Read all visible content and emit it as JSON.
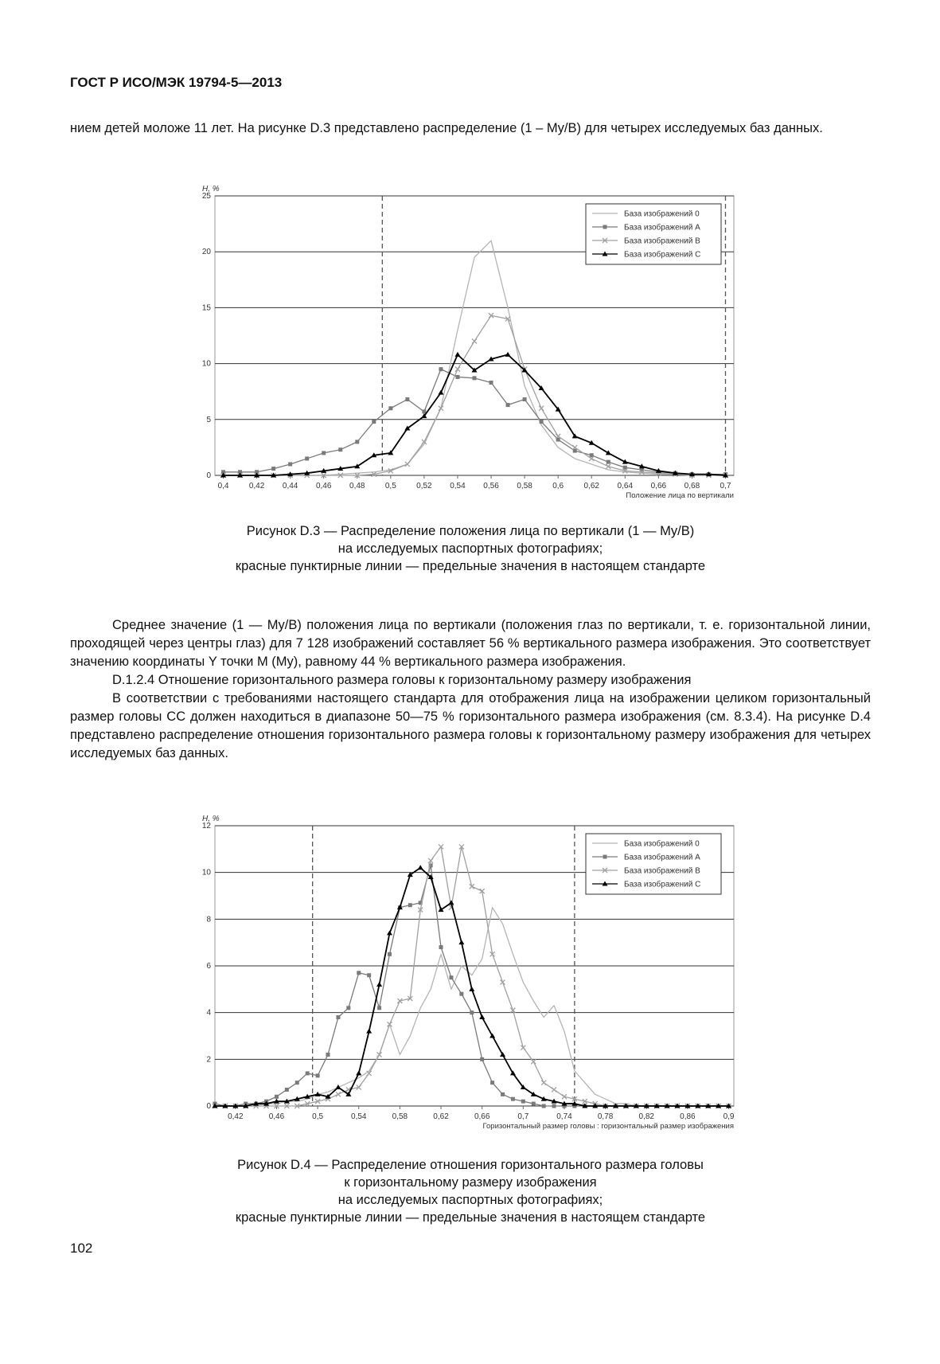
{
  "header": {
    "title": "ГОСТ Р ИСО/МЭК 19794-5—2013"
  },
  "paragraphs": [
    "нием детей моложе 11 лет.  На рисунке D.3 представлено распределение (1 – My/B) для четырех исследуемых баз данных.",
    "Среднее значение (1 — My/B) положения лица по вертикали  (положения глаз по вертикали, т. е. горизонтальной линии, проходящей через центры глаз) для 7 128 изображений составляет 56 % вертикального размера изображения. Это соответствует значению координаты Y точки M (My), равному 44 % вертикального размера изображения.",
    "D.1.2.4 Отношение горизонтального размера головы к горизонтальному размеру изображения",
    "В соответствии с требованиями настоящего стандарта для отображения лица на изображении целиком горизонтальный размер головы CC должен находиться в диапазоне 50—75 % горизонтального размера изображения (см. 8.3.4). На рисунке D.4 представлено распределение отношения горизонтального размера головы к горизонтальному размеру изображения для четырех исследуемых баз данных."
  ],
  "captions": [
    [
      "Рисунок D.3 — Распределение положения лица по вертикали (1 — My/B)",
      "на исследуемых паспортных фотографиях;",
      "красные пунктирные линии — предельные значения в настоящем стандарте"
    ],
    [
      "Рисунок D.4 — Распределение отношения горизонтального размера головы",
      "к горизонтальному размеру изображения",
      "на исследуемых паспортных фотографиях;",
      "красные пунктирные линии — предельные значения в настоящем стандарте"
    ]
  ],
  "page_number": "102",
  "chart_data": [
    {
      "type": "line",
      "y_label": "H, %",
      "x_label": "Положение лица по вертикали",
      "xlim": [
        0.395,
        0.705
      ],
      "ylim": [
        0,
        25
      ],
      "xticks": [
        {
          "value": 0.4,
          "label": "0,4"
        },
        {
          "value": 0.42,
          "label": "0,42"
        },
        {
          "value": 0.44,
          "label": "0,44"
        },
        {
          "value": 0.46,
          "label": "0,46"
        },
        {
          "value": 0.48,
          "label": "0,48"
        },
        {
          "value": 0.5,
          "label": "0,5"
        },
        {
          "value": 0.52,
          "label": "0,52"
        },
        {
          "value": 0.54,
          "label": "0,54"
        },
        {
          "value": 0.56,
          "label": "0,56"
        },
        {
          "value": 0.58,
          "label": "0,58"
        },
        {
          "value": 0.6,
          "label": "0,6"
        },
        {
          "value": 0.62,
          "label": "0,62"
        },
        {
          "value": 0.64,
          "label": "0,64"
        },
        {
          "value": 0.66,
          "label": "0,66"
        },
        {
          "value": 0.68,
          "label": "0,68"
        },
        {
          "value": 0.7,
          "label": "0,7"
        }
      ],
      "yticks": [
        0,
        5,
        10,
        15,
        20,
        25
      ],
      "grid": true,
      "legend": "upper right",
      "limit_lines": [
        0.495,
        0.7
      ],
      "x": [
        0.4,
        0.41,
        0.42,
        0.43,
        0.44,
        0.45,
        0.46,
        0.47,
        0.48,
        0.49,
        0.5,
        0.51,
        0.52,
        0.53,
        0.54,
        0.55,
        0.56,
        0.57,
        0.58,
        0.59,
        0.6,
        0.61,
        0.62,
        0.63,
        0.64,
        0.65,
        0.66,
        0.67,
        0.68,
        0.69,
        0.7
      ],
      "series": [
        {
          "name": "База изображений 0",
          "color": "#b4b4b4",
          "marker": "none",
          "values": [
            0,
            0,
            0,
            0,
            0,
            0,
            0,
            0.1,
            0.2,
            0.3,
            0.5,
            1,
            2.8,
            6,
            13,
            19.5,
            21,
            15,
            8,
            4.5,
            2.5,
            1.5,
            1.0,
            0.5,
            0.3,
            0.2,
            0.1,
            0.1,
            0,
            0,
            0
          ]
        },
        {
          "name": "База изображений A",
          "color": "#7a7a7a",
          "marker": "square",
          "values": [
            0.3,
            0.3,
            0.3,
            0.6,
            1.0,
            1.5,
            2.0,
            2.3,
            3.0,
            4.8,
            6.0,
            6.8,
            5.7,
            9.5,
            8.8,
            8.7,
            8.3,
            6.3,
            6.8,
            4.8,
            3.2,
            2.2,
            1.8,
            1.2,
            0.7,
            0.5,
            0.3,
            0.2,
            0.1,
            0.1,
            0.1
          ]
        },
        {
          "name": "База изображений B",
          "color": "#a0a0a0",
          "marker": "x",
          "values": [
            0,
            0,
            0,
            0,
            0,
            0,
            0,
            0,
            0,
            0.1,
            0.4,
            1.0,
            3.0,
            6.0,
            9.5,
            12,
            14.3,
            14,
            9.5,
            6,
            3.5,
            2.5,
            1.5,
            0.8,
            0.4,
            0.3,
            0.2,
            0.1,
            0,
            0,
            0
          ]
        },
        {
          "name": "База изображений C",
          "color": "#000000",
          "marker": "triangle",
          "values": [
            0,
            0,
            0,
            0,
            0.1,
            0.2,
            0.4,
            0.6,
            0.8,
            1.8,
            2.0,
            4.2,
            5.3,
            7.4,
            10.8,
            9.4,
            10.4,
            10.8,
            9.4,
            7.8,
            5.9,
            3.5,
            2.9,
            2.0,
            1.2,
            0.8,
            0.4,
            0.2,
            0.1,
            0.1,
            0
          ]
        }
      ]
    },
    {
      "type": "line",
      "y_label": "H, %",
      "x_label": "Горизонтальный размер головы : горизонтальный размер изображения",
      "xlim": [
        0.4,
        0.905
      ],
      "ylim": [
        0,
        12
      ],
      "xticks": [
        {
          "value": 0.42,
          "label": "0,42"
        },
        {
          "value": 0.46,
          "label": "0,46"
        },
        {
          "value": 0.5,
          "label": "0,5"
        },
        {
          "value": 0.54,
          "label": "0,54"
        },
        {
          "value": 0.58,
          "label": "0,58"
        },
        {
          "value": 0.62,
          "label": "0,62"
        },
        {
          "value": 0.66,
          "label": "0,66"
        },
        {
          "value": 0.7,
          "label": "0,7"
        },
        {
          "value": 0.74,
          "label": "0,74"
        },
        {
          "value": 0.78,
          "label": "0,78"
        },
        {
          "value": 0.82,
          "label": "0,82"
        },
        {
          "value": 0.86,
          "label": "0,86"
        },
        {
          "value": 0.9,
          "label": "0,9"
        }
      ],
      "yticks": [
        0,
        2,
        4,
        6,
        8,
        10,
        12
      ],
      "grid": true,
      "legend": "upper right",
      "limit_lines": [
        0.495,
        0.75
      ],
      "x": [
        0.4,
        0.41,
        0.42,
        0.43,
        0.44,
        0.45,
        0.46,
        0.47,
        0.48,
        0.49,
        0.5,
        0.51,
        0.52,
        0.53,
        0.54,
        0.55,
        0.56,
        0.57,
        0.58,
        0.59,
        0.6,
        0.61,
        0.62,
        0.63,
        0.64,
        0.65,
        0.66,
        0.67,
        0.68,
        0.69,
        0.7,
        0.71,
        0.72,
        0.73,
        0.74,
        0.75,
        0.76,
        0.77,
        0.78,
        0.79,
        0.8,
        0.81,
        0.82,
        0.83,
        0.84,
        0.85,
        0.86,
        0.87,
        0.88,
        0.89,
        0.9
      ],
      "series": [
        {
          "name": "База изображений 0",
          "color": "#b4b4b4",
          "marker": "none",
          "values": [
            0,
            0,
            0,
            0,
            0,
            0.1,
            0.1,
            0.2,
            0.2,
            0.3,
            0.5,
            0.6,
            0.8,
            1.0,
            1.2,
            1.5,
            2.2,
            3.5,
            2.2,
            3.0,
            4.2,
            5.0,
            6.5,
            5.0,
            6.0,
            5.6,
            6.3,
            8.5,
            7.8,
            6.5,
            5.3,
            4.5,
            3.8,
            4.3,
            3.2,
            1.5,
            1.0,
            0.5,
            0.3,
            0.1,
            0.1,
            0,
            0,
            0,
            0,
            0,
            0,
            0,
            0,
            0,
            0
          ]
        },
        {
          "name": "База изображений A",
          "color": "#7a7a7a",
          "marker": "square",
          "values": [
            0.1,
            0,
            0,
            0.1,
            0.1,
            0.2,
            0.4,
            0.7,
            1.0,
            1.4,
            1.3,
            2.2,
            3.8,
            4.2,
            5.7,
            5.6,
            4.2,
            6.5,
            8.5,
            8.6,
            8.7,
            10.3,
            6.8,
            5.5,
            4.8,
            4.0,
            2.0,
            1.0,
            0.5,
            0.3,
            0.2,
            0.1,
            0,
            0,
            0,
            0,
            0,
            0,
            0,
            0,
            0,
            0,
            0,
            0,
            0,
            0,
            0,
            0,
            0,
            0,
            0
          ]
        },
        {
          "name": "База изображений B",
          "color": "#a0a0a0",
          "marker": "x",
          "values": [
            0,
            0,
            0,
            0,
            0,
            0,
            0,
            0,
            0,
            0.1,
            0.2,
            0.3,
            0.5,
            0.7,
            0.8,
            1.4,
            2.2,
            3.5,
            4.5,
            4.6,
            8.4,
            10.5,
            11.1,
            8.5,
            11.1,
            9.4,
            9.2,
            6.5,
            5.3,
            4.1,
            2.5,
            1.9,
            1.0,
            0.7,
            0.4,
            0.3,
            0.2,
            0.1,
            0,
            0,
            0,
            0,
            0,
            0,
            0,
            0,
            0,
            0,
            0,
            0,
            0
          ]
        },
        {
          "name": "База изображений C",
          "color": "#000000",
          "marker": "triangle",
          "values": [
            0,
            0,
            0,
            0,
            0.1,
            0.1,
            0.2,
            0.2,
            0.3,
            0.4,
            0.5,
            0.4,
            0.8,
            0.5,
            1.4,
            3.2,
            5.2,
            7.4,
            8.5,
            9.9,
            10.2,
            9.8,
            8.4,
            8.7,
            7.0,
            5.0,
            3.8,
            3.0,
            2.2,
            1.4,
            0.8,
            0.5,
            0.3,
            0.2,
            0.1,
            0.1,
            0,
            0,
            0,
            0,
            0,
            0,
            0,
            0,
            0,
            0,
            0,
            0,
            0,
            0,
            0
          ]
        }
      ]
    }
  ]
}
